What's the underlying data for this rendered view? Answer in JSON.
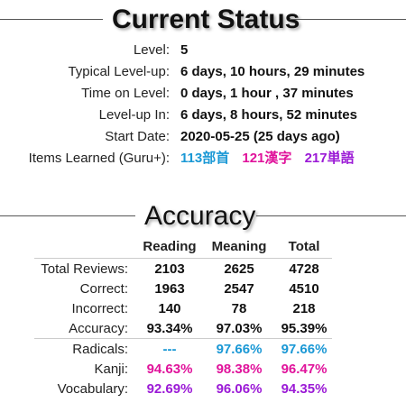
{
  "status": {
    "title": "Current Status",
    "rows": [
      {
        "label": "Level:",
        "value": "5"
      },
      {
        "label": "Typical Level-up:",
        "value": "6 days, 10 hours, 29 minutes"
      },
      {
        "label": "Time on Level:",
        "value": "0 days, 1 hour , 37 minutes"
      },
      {
        "label": "Level-up In:",
        "value": "6 days, 8 hours, 52 minutes"
      },
      {
        "label": "Start Date:",
        "value": "2020-05-25 (25 days ago)"
      }
    ],
    "items_learned": {
      "label": "Items Learned (Guru+):",
      "radicals": "113部首",
      "kanji": "121漢字",
      "vocabulary": "217単語"
    }
  },
  "accuracy": {
    "title": "Accuracy",
    "columns": [
      "Reading",
      "Meaning",
      "Total"
    ],
    "rows": [
      {
        "label": "Total Reviews:",
        "reading": "2103",
        "meaning": "2625",
        "total": "4728"
      },
      {
        "label": "Correct:",
        "reading": "1963",
        "meaning": "2547",
        "total": "4510"
      },
      {
        "label": "Incorrect:",
        "reading": "140",
        "meaning": "78",
        "total": "218"
      },
      {
        "label": "Accuracy:",
        "reading": "93.34%",
        "meaning": "97.03%",
        "total": "95.39%"
      }
    ],
    "by_type": [
      {
        "label": "Radicals:",
        "reading": "---",
        "meaning": "97.66%",
        "total": "97.66%"
      },
      {
        "label": "Kanji:",
        "reading": "94.63%",
        "meaning": "98.38%",
        "total": "96.47%"
      },
      {
        "label": "Vocabulary:",
        "reading": "92.69%",
        "meaning": "96.06%",
        "total": "94.35%"
      }
    ]
  },
  "colors": {
    "radical": "#1a98d5",
    "kanji": "#e0139b",
    "vocabulary": "#9b1ad6"
  }
}
